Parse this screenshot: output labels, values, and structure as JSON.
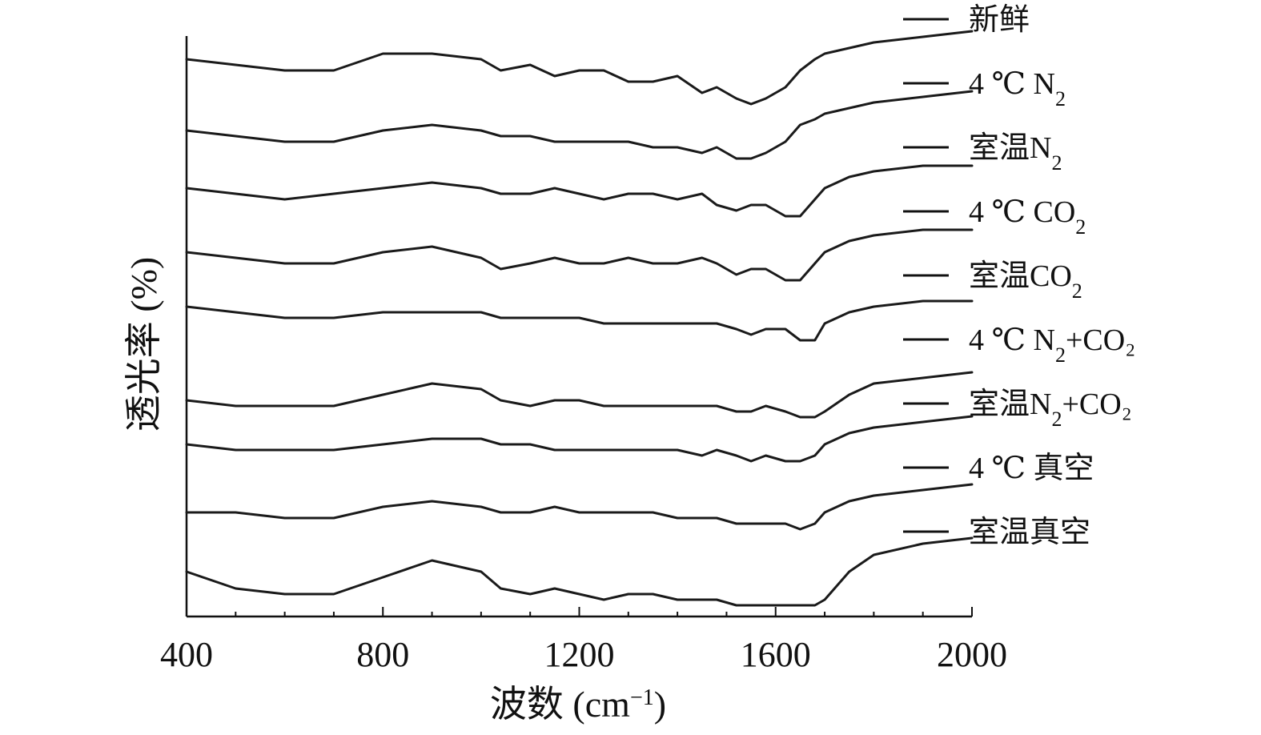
{
  "chart_data": {
    "type": "line",
    "xlabel_text": "波数 (cm",
    "xlabel_sup": "−1",
    "xlabel_close": ")",
    "ylabel": "透光率 (%)",
    "xlim": [
      400,
      2000
    ],
    "x_ticks": [
      400,
      800,
      1200,
      1600,
      2000
    ],
    "x_minor_ticks": [
      500,
      600,
      700,
      900,
      1000,
      1100,
      1300,
      1400,
      1500,
      1700,
      1800,
      1900
    ],
    "grid": false,
    "legend_position": "right",
    "x": [
      400,
      500,
      600,
      700,
      800,
      900,
      1000,
      1040,
      1100,
      1150,
      1200,
      1250,
      1300,
      1350,
      1400,
      1450,
      1480,
      1520,
      1550,
      1580,
      1620,
      1650,
      1680,
      1700,
      1750,
      1800,
      1900,
      2000
    ],
    "series": [
      {
        "name_base": "新鲜",
        "name_sub": "",
        "name_tail": "",
        "values": [
          2,
          1,
          0,
          0,
          3,
          3,
          2,
          0,
          1,
          -1,
          0,
          0,
          -2,
          -2,
          -1,
          -4,
          -3,
          -5,
          -6,
          -5,
          -3,
          0,
          2,
          3,
          4,
          5,
          6,
          7
        ]
      },
      {
        "name_base": "4 ℃  N",
        "name_sub": "2",
        "name_tail": "",
        "values": [
          1,
          0,
          -1,
          -1,
          1,
          2,
          1,
          0,
          0,
          -1,
          -1,
          -1,
          -1,
          -2,
          -2,
          -3,
          -2,
          -4,
          -4,
          -3,
          -1,
          2,
          3,
          4,
          5,
          6,
          7,
          8
        ]
      },
      {
        "name_base": "室温N",
        "name_sub": "2",
        "name_tail": "",
        "values": [
          0,
          -1,
          -2,
          -1,
          0,
          1,
          0,
          -1,
          -1,
          0,
          -1,
          -2,
          -1,
          -1,
          -2,
          -1,
          -3,
          -4,
          -3,
          -3,
          -5,
          -5,
          -2,
          0,
          2,
          3,
          4,
          4
        ]
      },
      {
        "name_base": "4 ℃  CO",
        "name_sub": "2",
        "name_tail": "",
        "values": [
          0,
          -1,
          -2,
          -2,
          0,
          1,
          -1,
          -3,
          -2,
          -1,
          -2,
          -2,
          -1,
          -2,
          -2,
          -1,
          -2,
          -4,
          -3,
          -3,
          -5,
          -5,
          -2,
          0,
          2,
          3,
          4,
          4
        ]
      },
      {
        "name_base": "室温CO",
        "name_sub": "2",
        "name_tail": "",
        "values": [
          1,
          0,
          -1,
          -1,
          0,
          0,
          0,
          -1,
          -1,
          -1,
          -1,
          -2,
          -2,
          -2,
          -2,
          -2,
          -2,
          -3,
          -4,
          -3,
          -3,
          -5,
          -5,
          -2,
          0,
          1,
          2,
          2
        ]
      },
      {
        "name_base": "4 ℃ N",
        "name_sub": "2",
        "name_tail": "+CO₂",
        "values": [
          0,
          -1,
          -1,
          -1,
          1,
          3,
          2,
          0,
          -1,
          0,
          0,
          -1,
          -1,
          -1,
          -1,
          -1,
          -1,
          -2,
          -2,
          -1,
          -2,
          -3,
          -3,
          -2,
          1,
          3,
          4,
          5
        ]
      },
      {
        "name_base": "室温N",
        "name_sub": "2",
        "name_tail": "+CO₂",
        "values": [
          0,
          -1,
          -1,
          -1,
          0,
          1,
          1,
          0,
          0,
          -1,
          -1,
          -1,
          -1,
          -1,
          -1,
          -2,
          -1,
          -2,
          -3,
          -2,
          -3,
          -3,
          -2,
          0,
          2,
          3,
          4,
          5
        ]
      },
      {
        "name_base": "4 ℃ 真空",
        "name_sub": "",
        "name_tail": "",
        "values": [
          0,
          0,
          -1,
          -1,
          1,
          2,
          1,
          0,
          0,
          1,
          0,
          0,
          0,
          0,
          -1,
          -1,
          -1,
          -2,
          -2,
          -2,
          -2,
          -3,
          -2,
          0,
          2,
          3,
          4,
          5
        ]
      },
      {
        "name_base": "室温真空",
        "name_sub": "",
        "name_tail": "",
        "values": [
          3,
          0,
          -1,
          -1,
          2,
          5,
          3,
          0,
          -1,
          0,
          -1,
          -2,
          -1,
          -1,
          -2,
          -2,
          -2,
          -3,
          -3,
          -3,
          -3,
          -3,
          -3,
          -2,
          3,
          6,
          8,
          9
        ]
      }
    ]
  }
}
